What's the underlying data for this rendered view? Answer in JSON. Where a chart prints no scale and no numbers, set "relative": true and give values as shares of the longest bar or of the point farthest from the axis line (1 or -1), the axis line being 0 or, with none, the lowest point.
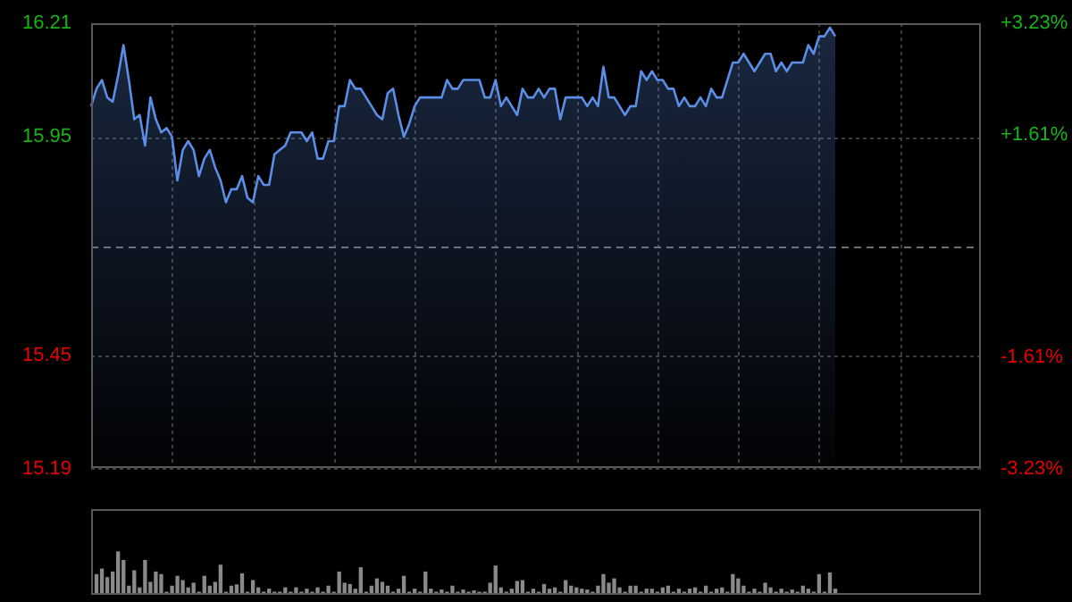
{
  "chart_data": [
    {
      "type": "area",
      "color": "#5b8ee6",
      "marker": "none",
      "tick_labels": "y",
      "grid": true,
      "categories": [
        null,
        null,
        null,
        null,
        null,
        null,
        null,
        null,
        null,
        null,
        null,
        null,
        null,
        null,
        null,
        null,
        null,
        null,
        null,
        null,
        null,
        null,
        null,
        null,
        null,
        null,
        null,
        null,
        null,
        null,
        null,
        null,
        null,
        null,
        null,
        null,
        null,
        null,
        null,
        null,
        null,
        null,
        null,
        null,
        null,
        null,
        null,
        null,
        null,
        null,
        null,
        null,
        null,
        null,
        null,
        null,
        null,
        null,
        null,
        null,
        null,
        null,
        null,
        null,
        null,
        null,
        null,
        null,
        null,
        null,
        null,
        null,
        null,
        null,
        null,
        null,
        null,
        null,
        null,
        null,
        null,
        null,
        null,
        null,
        null,
        null,
        null,
        null,
        null,
        null,
        null,
        null,
        null,
        null,
        null,
        null,
        null,
        null,
        null,
        null,
        null,
        null,
        null,
        null,
        null,
        null,
        null,
        null,
        null,
        null,
        null,
        null,
        null,
        null,
        null,
        null,
        null,
        null,
        null,
        null,
        null,
        null,
        null,
        null,
        null,
        null,
        null,
        null,
        null,
        null,
        null,
        null,
        null,
        null,
        null,
        null,
        null,
        null,
        null,
        null,
        null,
        null,
        null,
        null,
        null,
        null,
        null,
        null,
        null,
        null,
        null,
        null,
        null,
        null,
        null,
        null,
        null,
        null,
        null,
        null,
        null,
        null,
        null,
        null,
        null,
        null
      ],
      "values": [
        16.02,
        16.06,
        16.08,
        16.04,
        16.03,
        16.09,
        16.16,
        16.08,
        15.99,
        16.0,
        15.93,
        16.04,
        15.99,
        15.96,
        15.97,
        15.95,
        15.85,
        15.92,
        15.94,
        15.92,
        15.86,
        15.9,
        15.92,
        15.88,
        15.85,
        15.8,
        15.83,
        15.83,
        15.86,
        15.81,
        15.8,
        15.86,
        15.84,
        15.84,
        15.91,
        15.92,
        15.93,
        15.96,
        15.96,
        15.96,
        15.94,
        15.96,
        15.9,
        15.9,
        15.94,
        15.94,
        16.02,
        16.02,
        16.08,
        16.06,
        16.06,
        16.04,
        16.02,
        16.0,
        15.99,
        16.05,
        16.06,
        16.0,
        15.95,
        15.98,
        16.02,
        16.04,
        16.04,
        16.04,
        16.04,
        16.04,
        16.08,
        16.06,
        16.06,
        16.08,
        16.08,
        16.08,
        16.08,
        16.04,
        16.04,
        16.08,
        16.02,
        16.04,
        16.02,
        16.0,
        16.06,
        16.04,
        16.04,
        16.06,
        16.04,
        16.06,
        16.06,
        15.99,
        16.04,
        16.04,
        16.04,
        16.04,
        16.02,
        16.04,
        16.02,
        16.11,
        16.04,
        16.04,
        16.02,
        16.0,
        16.02,
        16.02,
        16.1,
        16.08,
        16.1,
        16.08,
        16.08,
        16.06,
        16.06,
        16.02,
        16.04,
        16.02,
        16.02,
        16.04,
        16.02,
        16.06,
        16.04,
        16.04,
        16.08,
        16.12,
        16.12,
        16.14,
        16.12,
        16.1,
        16.12,
        16.14,
        16.14,
        16.1,
        16.12,
        16.1,
        16.12,
        16.12,
        16.12,
        16.16,
        16.14,
        16.18,
        16.18,
        16.2,
        16.18,
        null,
        null,
        null,
        null,
        null,
        null,
        null,
        null,
        null,
        null,
        null,
        null,
        null,
        null,
        null,
        null,
        null,
        null,
        null,
        null,
        null,
        null,
        null,
        null,
        null,
        null,
        null
      ],
      "ylim": [
        15.19,
        16.21
      ],
      "yticks": [
        15.19,
        15.45,
        15.95,
        16.21
      ],
      "y2lim": [
        -3.23,
        3.23
      ],
      "y2ticks": [
        {
          "value": -3.23,
          "label": "-3.23%"
        },
        {
          "value": -1.61,
          "label": "-1.61%"
        },
        {
          "value": 1.61,
          "label": "+1.61%"
        },
        {
          "value": 3.23,
          "label": "+3.23%"
        }
      ],
      "ref_lines": [
        {
          "axis": "y",
          "value": 15.7
        }
      ]
    },
    {
      "type": "bar",
      "color": "#8a8a8a",
      "relative": true,
      "tick_labels": false,
      "categories": [
        null,
        null,
        null,
        null,
        null,
        null,
        null,
        null,
        null,
        null,
        null,
        null,
        null,
        null,
        null,
        null,
        null,
        null,
        null,
        null,
        null,
        null,
        null,
        null,
        null,
        null,
        null,
        null,
        null,
        null,
        null,
        null,
        null,
        null,
        null,
        null,
        null,
        null,
        null,
        null,
        null,
        null,
        null,
        null,
        null,
        null,
        null,
        null,
        null,
        null,
        null,
        null,
        null,
        null,
        null,
        null,
        null,
        null,
        null,
        null,
        null,
        null,
        null,
        null,
        null,
        null,
        null,
        null,
        null,
        null,
        null,
        null,
        null,
        null,
        null,
        null,
        null,
        null,
        null,
        null,
        null,
        null,
        null,
        null,
        null,
        null,
        null,
        null,
        null,
        null,
        null,
        null,
        null,
        null,
        null,
        null,
        null,
        null,
        null,
        null,
        null,
        null,
        null,
        null,
        null,
        null,
        null,
        null,
        null,
        null,
        null,
        null,
        null,
        null,
        null,
        null,
        null,
        null,
        null,
        null,
        null,
        null,
        null,
        null,
        null,
        null,
        null,
        null,
        null,
        null,
        null,
        null,
        null,
        null,
        null,
        null,
        null,
        null,
        null,
        null,
        null,
        null,
        null,
        null,
        null,
        null,
        null,
        null,
        null,
        null,
        null,
        null,
        null,
        null,
        null,
        null,
        null,
        null,
        null,
        null,
        null,
        null,
        null,
        null,
        null,
        null
      ],
      "values": [
        null,
        0.47,
        0.6,
        0.4,
        0.53,
        1,
        0.8,
        0.2,
        0.56,
        0.16,
        0.8,
        0.29,
        0.53,
        0.47,
        0.06,
        0.2,
        0.43,
        0.33,
        0.16,
        0.27,
        0.06,
        0.43,
        0.2,
        0.29,
        0.69,
        0.06,
        0.2,
        0.23,
        0.49,
        0.06,
        0.33,
        0.16,
        0.06,
        0.13,
        0.06,
        0.06,
        0.16,
        0.06,
        0.16,
        0.06,
        0.13,
        0.06,
        0.16,
        0.06,
        0.2,
        0.06,
        0.53,
        0.27,
        0.24,
        0.13,
        0.63,
        0.06,
        0.2,
        0.37,
        0.29,
        0.2,
        0.06,
        0.13,
        0.43,
        0.06,
        0.13,
        0.06,
        0.53,
        0.13,
        0.06,
        0.11,
        0.06,
        0.2,
        0.06,
        0.11,
        0.06,
        0.09,
        0.06,
        0.06,
        0.27,
        0.67,
        0.16,
        0.06,
        0.13,
        0.31,
        0.33,
        0.06,
        0.13,
        0.06,
        0.24,
        0.13,
        0.16,
        0.06,
        0.33,
        0.2,
        0.16,
        0.13,
        0.11,
        0.06,
        0.2,
        0.47,
        0.27,
        0.37,
        0.16,
        0.06,
        0.2,
        0.2,
        0.06,
        0.13,
        0.13,
        0.06,
        0.16,
        0.2,
        0.06,
        0.13,
        0.06,
        0.13,
        0.16,
        0.06,
        0.2,
        0.06,
        0.13,
        0.16,
        0.06,
        0.47,
        0.37,
        0.2,
        0.06,
        0.13,
        0.06,
        0.27,
        0.16,
        0.06,
        0.13,
        0.06,
        0.11,
        0.06,
        0.2,
        0.13,
        0.06,
        0.47,
        0.06,
        0.51,
        0.13,
        null,
        null,
        null,
        null,
        null,
        null,
        null,
        null,
        null,
        null,
        null,
        null,
        null,
        null,
        null,
        null,
        null,
        null,
        null,
        null,
        null,
        null,
        null,
        null,
        null,
        null,
        null
      ]
    }
  ]
}
